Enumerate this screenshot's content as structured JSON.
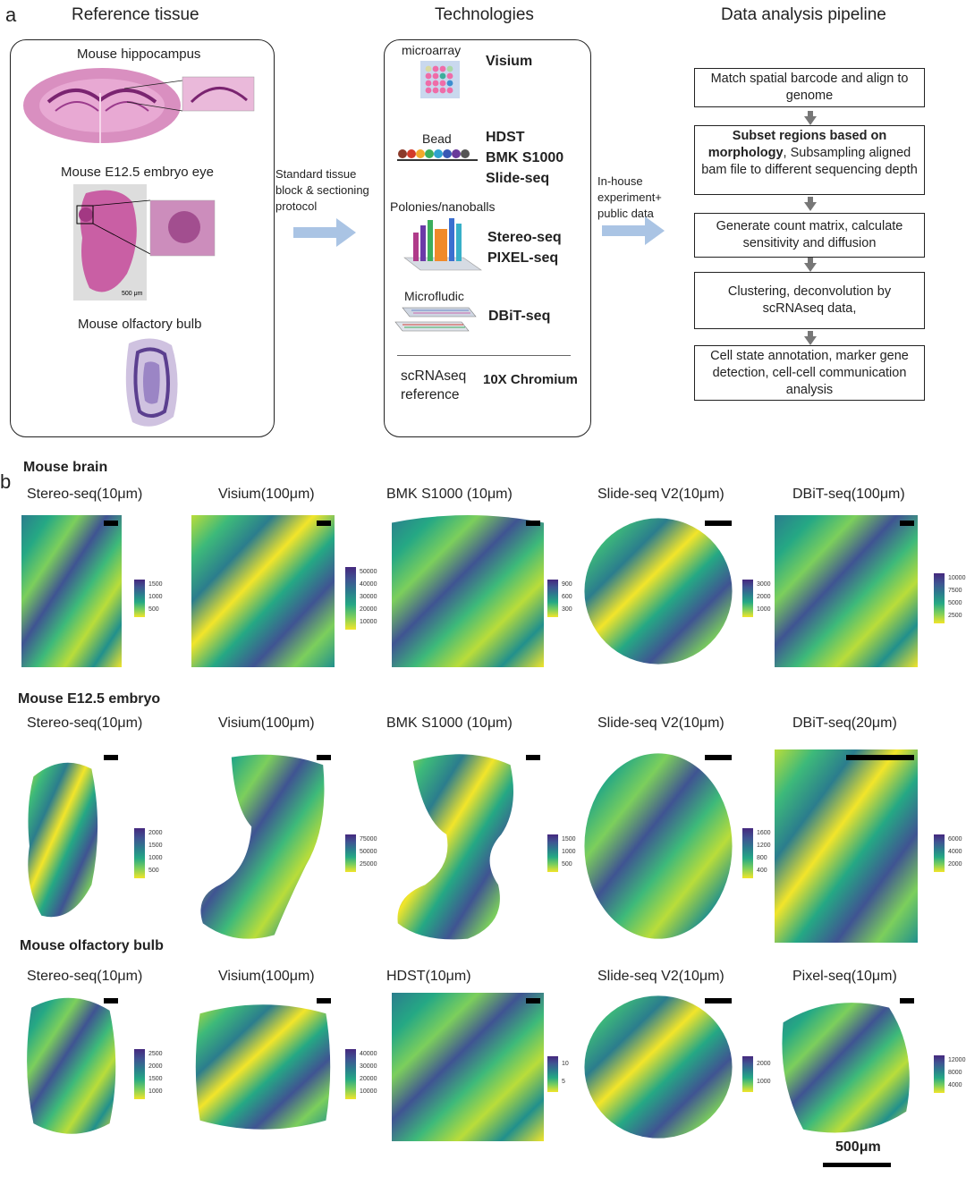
{
  "panel_a": {
    "letter": "a",
    "reference": {
      "title": "Reference tissue",
      "items": [
        "Mouse hippocampus",
        "Mouse E12.5 embryo eye",
        "Mouse olfactory bulb"
      ],
      "scale_text": "500 μm"
    },
    "arrow1_text": "Standard tissue\nblock & sectioning\nprotocol",
    "technologies": {
      "title": "Technologies",
      "groups": [
        {
          "label": "microarray",
          "names": "Visium"
        },
        {
          "label": "Bead",
          "names": "HDST\nBMK S1000\nSlide-seq"
        },
        {
          "label": "Polonies/nanoballs",
          "names": "Stereo-seq\nPIXEL-seq"
        },
        {
          "label": "Microfludic",
          "names": "DBiT-seq"
        },
        {
          "label": "scRNAseq\nreference",
          "names": "10X Chromium"
        }
      ]
    },
    "arrow2_text": "In-house\nexperiment+\npublic data",
    "pipeline": {
      "title": "Data analysis pipeline",
      "steps": [
        "Match spatial barcode and align to genome",
        "Subsampling aligned bam file to different sequencing depth",
        "Generate count matrix, calculate sensitivity and diffusion",
        "Clustering, deconvolution by scRNAseq data,",
        "Cell state annotation, marker gene detection, cell-cell communication analysis"
      ],
      "step2_bold": "Subset regions based on morphology"
    }
  },
  "panel_b": {
    "letter": "b",
    "scale_label": "500μm",
    "rows": [
      {
        "title": "Mouse brain",
        "plots": [
          {
            "title": "Stereo-seq(10μm)",
            "ticks": [
              "1500",
              "1000",
              "500"
            ]
          },
          {
            "title": "Visium(100μm)",
            "ticks": [
              "50000",
              "40000",
              "30000",
              "20000",
              "10000"
            ]
          },
          {
            "title": "BMK S1000 (10μm)",
            "ticks": [
              "900",
              "600",
              "300"
            ]
          },
          {
            "title": "Slide-seq V2(10μm)",
            "ticks": [
              "3000",
              "2000",
              "1000"
            ]
          },
          {
            "title": "DBiT-seq(100μm)",
            "ticks": [
              "10000",
              "7500",
              "5000",
              "2500"
            ]
          }
        ]
      },
      {
        "title": "Mouse E12.5 embryo",
        "plots": [
          {
            "title": "Stereo-seq(10μm)",
            "ticks": [
              "2000",
              "1500",
              "1000",
              "500"
            ]
          },
          {
            "title": "Visium(100μm)",
            "ticks": [
              "75000",
              "50000",
              "25000"
            ]
          },
          {
            "title": "BMK S1000 (10μm)",
            "ticks": [
              "1500",
              "1000",
              "500"
            ]
          },
          {
            "title": "Slide-seq V2(10μm)",
            "ticks": [
              "1600",
              "1200",
              "800",
              "400"
            ]
          },
          {
            "title": "DBiT-seq(20μm)",
            "ticks": [
              "6000",
              "4000",
              "2000"
            ]
          }
        ]
      },
      {
        "title": "Mouse olfactory bulb",
        "plots": [
          {
            "title": "Stereo-seq(10μm)",
            "ticks": [
              "2500",
              "2000",
              "1500",
              "1000"
            ]
          },
          {
            "title": "Visium(100μm)",
            "ticks": [
              "40000",
              "30000",
              "20000",
              "10000"
            ]
          },
          {
            "title": "HDST(10μm)",
            "ticks": [
              "10",
              "5"
            ]
          },
          {
            "title": "Slide-seq V2(10μm)",
            "ticks": [
              "2000",
              "1000"
            ]
          },
          {
            "title": "Pixel-seq(10μm)",
            "ticks": [
              "12000",
              "8000",
              "4000"
            ]
          }
        ]
      }
    ]
  }
}
